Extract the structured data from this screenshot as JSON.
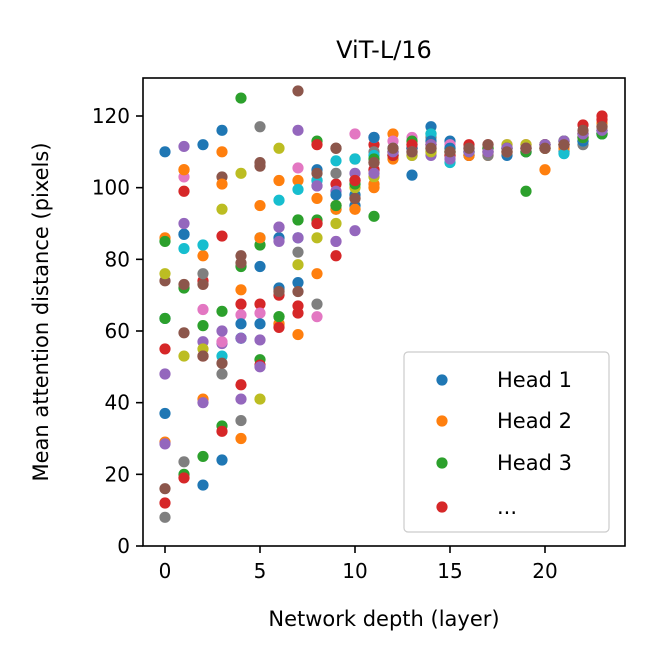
{
  "chart_data": {
    "type": "scatter",
    "title": "ViT-L/16",
    "xlabel": "Network depth (layer)",
    "ylabel": "Mean attention distance (pixels)",
    "xlim": [
      -1.2,
      24.2
    ],
    "ylim": [
      0,
      130
    ],
    "xticks": [
      "0",
      "5",
      "10",
      "15",
      "20"
    ],
    "xtick_values": [
      0,
      5,
      10,
      15,
      20
    ],
    "yticks": [
      "0",
      "20",
      "40",
      "60",
      "80",
      "100",
      "120"
    ],
    "ytick_values": [
      0,
      20,
      40,
      60,
      80,
      100,
      120
    ],
    "grid": false,
    "legend": {
      "placement": "lower-right",
      "entries": [
        {
          "label": "Head 1",
          "color": "#1f77b4"
        },
        {
          "label": "Head 2",
          "color": "#ff7f0e"
        },
        {
          "label": "Head 3",
          "color": "#2ca02c"
        },
        {
          "label": "...",
          "color": "#d62728"
        }
      ]
    },
    "colors": [
      "#1f77b4",
      "#ff7f0e",
      "#2ca02c",
      "#d62728",
      "#9467bd",
      "#8c564b",
      "#e377c2",
      "#7f7f7f",
      "#bcbd22",
      "#17becf"
    ],
    "series": [
      {
        "head": 1,
        "values": [
          110,
          87,
          112,
          116,
          58,
          78,
          86,
          73.5,
          102,
          95,
          98,
          114,
          110,
          103.5,
          117,
          113,
          111,
          110,
          109,
          110,
          112,
          110,
          113,
          115
        ]
      },
      {
        "head": 2,
        "values": [
          86,
          105,
          81,
          110,
          71.5,
          95,
          102,
          102,
          97,
          95,
          94,
          101,
          115,
          111,
          112,
          111,
          110,
          109,
          111,
          112,
          105,
          111,
          115,
          118
        ]
      },
      {
        "head": 3,
        "values": [
          85,
          72,
          61.5,
          65.5,
          125,
          84,
          64,
          91,
          113,
          94,
          108,
          92,
          109,
          112,
          115,
          110,
          109,
          111,
          110,
          99,
          112,
          113,
          115,
          115
        ]
      },
      {
        "head": 4,
        "values": [
          55,
          99,
          74,
          86.5,
          67.5,
          67.5,
          70,
          67,
          112,
          101,
          102,
          112,
          110,
          111,
          110,
          110,
          109,
          112,
          111,
          110,
          111,
          112,
          117.5,
          120
        ]
      },
      {
        "head": 5,
        "values": [
          48,
          111.5,
          57,
          56.5,
          41,
          57.5,
          85,
          116,
          100.5,
          99,
          104,
          105,
          109,
          109,
          109,
          109,
          110,
          110,
          110,
          111,
          112,
          112,
          114,
          116
        ]
      },
      {
        "head": 6,
        "values": [
          74,
          73,
          73,
          103,
          81,
          106,
          62,
          127,
          90,
          111,
          97,
          107,
          110,
          111,
          112,
          110,
          110,
          111,
          110,
          111,
          111,
          113,
          115,
          116
        ]
      },
      {
        "head": 7,
        "values": [
          63.5,
          103,
          66,
          57,
          64.5,
          65,
          89,
          105.5,
          64,
          85,
          115,
          114,
          113,
          114,
          111,
          112,
          111,
          111,
          112,
          112,
          112,
          113,
          114,
          116
        ]
      },
      {
        "head": 8,
        "values": [
          8,
          23.5,
          76,
          48,
          35,
          117,
          71.5,
          82,
          67.5,
          104,
          102,
          110,
          110,
          111,
          114,
          110,
          109,
          109,
          111,
          110,
          111,
          112,
          112,
          115
        ]
      },
      {
        "head": 9,
        "values": [
          76,
          53,
          55,
          94,
          104,
          41,
          111,
          78.5,
          86,
          90,
          100,
          103,
          110,
          109,
          110,
          110,
          110,
          111,
          112,
          112,
          111,
          112,
          114,
          116
        ]
      },
      {
        "head": 10,
        "values": [
          63.5,
          83,
          84,
          53,
          58,
          86,
          96.5,
          99.5,
          102,
          107.5,
          108,
          109,
          111,
          110,
          115,
          107,
          110,
          110,
          111,
          110,
          111,
          109.5,
          113,
          115
        ]
      },
      {
        "head": 11,
        "values": [
          37,
          87,
          17,
          24,
          62,
          62,
          72,
          86,
          105,
          98,
          95,
          114,
          109,
          111,
          113,
          111,
          110,
          110,
          111,
          111,
          111,
          112,
          113,
          116
        ]
      },
      {
        "head": 12,
        "values": [
          29,
          105,
          41,
          101,
          30,
          86,
          62,
          59,
          76,
          94,
          94,
          100,
          108,
          110,
          112,
          109,
          109,
          110,
          110,
          111,
          111,
          112,
          114,
          117
        ]
      },
      {
        "head": 13,
        "values": [
          63.5,
          20,
          25,
          33.5,
          78,
          52,
          64,
          91,
          91,
          95,
          101,
          108,
          109,
          113,
          111,
          110,
          110,
          111,
          111,
          110,
          112,
          113,
          114,
          115
        ]
      },
      {
        "head": 14,
        "values": [
          12,
          19,
          53,
          32,
          45,
          50.5,
          61,
          65,
          90,
          81,
          102,
          105,
          109,
          112,
          112,
          109,
          112,
          110,
          111,
          111,
          112,
          112,
          115,
          119
        ]
      },
      {
        "head": 15,
        "values": [
          28.5,
          90,
          40,
          60,
          58,
          50,
          89,
          86,
          100.5,
          85,
          88,
          104,
          110,
          110,
          112,
          108,
          110,
          110,
          111,
          111,
          112,
          113,
          115,
          116
        ]
      },
      {
        "head": 16,
        "values": [
          16,
          59.5,
          53,
          51,
          79,
          107,
          71,
          71,
          104,
          111,
          97,
          107,
          111,
          110,
          111,
          110,
          111,
          112,
          110,
          111,
          111,
          112,
          116,
          117
        ]
      }
    ]
  }
}
